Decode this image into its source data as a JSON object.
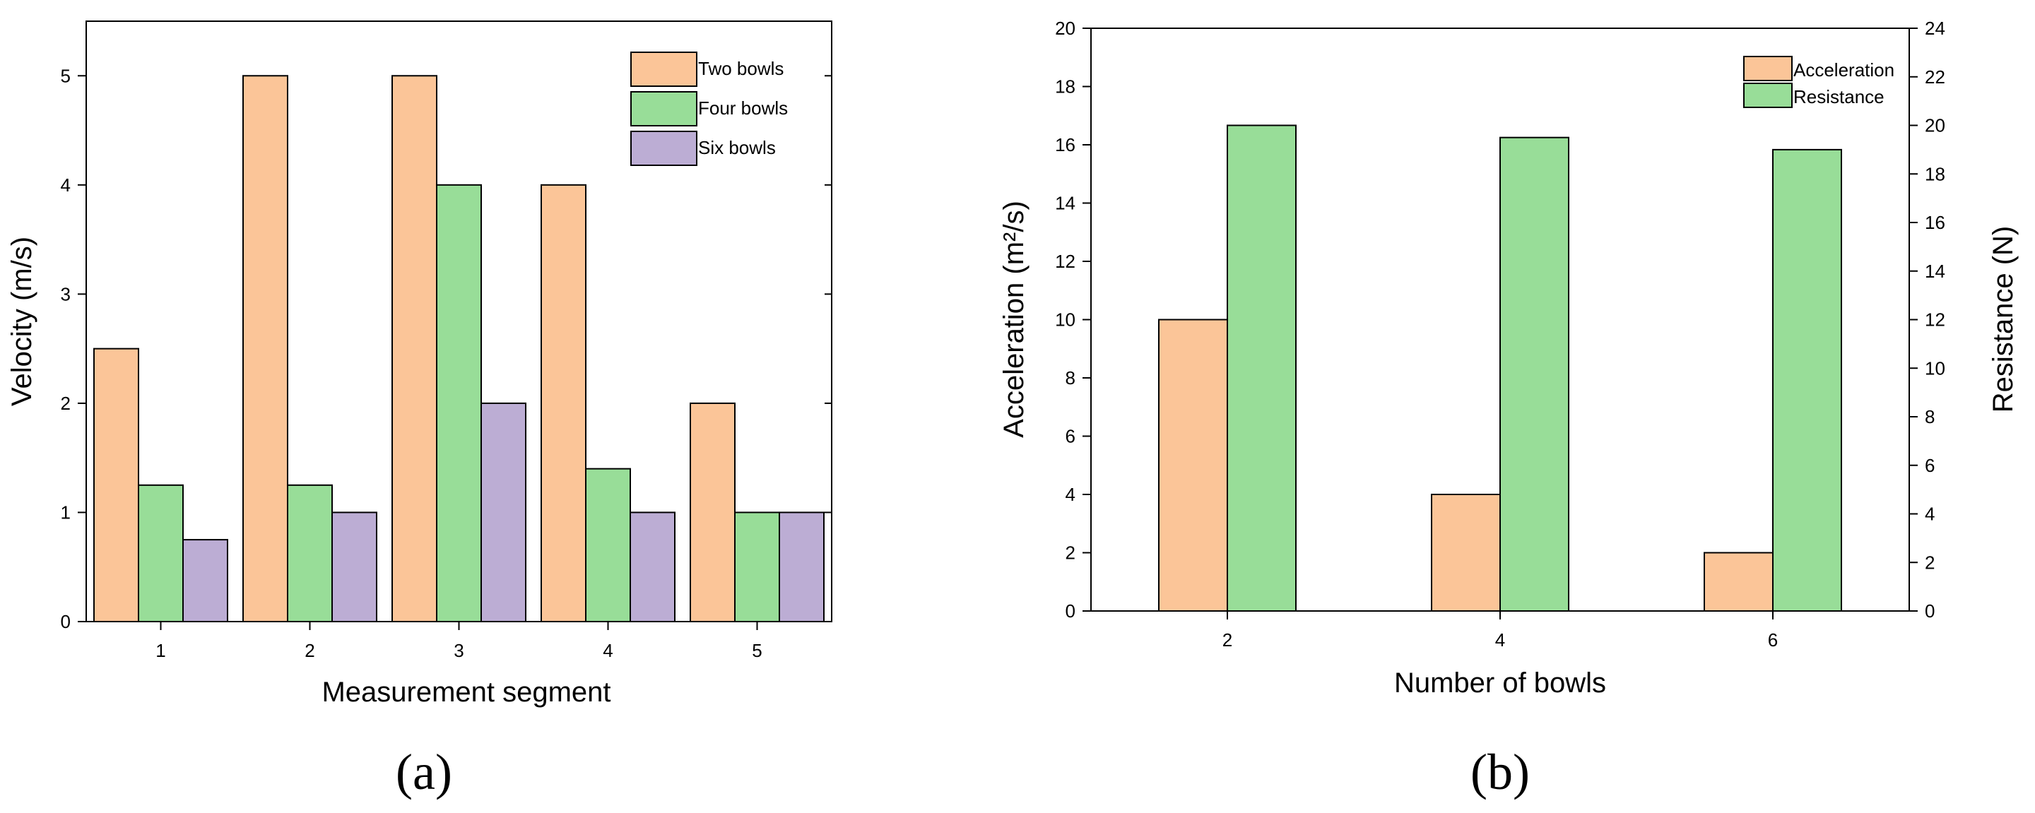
{
  "colors": {
    "orange": "#fbc598",
    "green": "#98dd98",
    "purple": "#bcadd4",
    "stroke": "#000000"
  },
  "chart_data": [
    {
      "type": "bar",
      "panel_label": "(a)",
      "categories": [
        "1",
        "2",
        "3",
        "4",
        "5"
      ],
      "series": [
        {
          "name": "Two bowls",
          "color": "#fbc598",
          "values": [
            2.5,
            5,
            5,
            4,
            2
          ]
        },
        {
          "name": "Four bowls",
          "color": "#98dd98",
          "values": [
            1.25,
            1.25,
            4,
            1.4,
            1
          ]
        },
        {
          "name": "Six bowls",
          "color": "#bcadd4",
          "values": [
            0.75,
            1,
            2,
            1,
            1
          ]
        }
      ],
      "xlabel": "Measurement segment",
      "ylabel": "Velocity (m/s)",
      "ylim": [
        0,
        5.5
      ],
      "yticks": [
        "0",
        "1",
        "2",
        "3",
        "4",
        "5"
      ],
      "legend_position": "top-right"
    },
    {
      "type": "bar",
      "panel_label": "(b)",
      "categories": [
        "2",
        "4",
        "6"
      ],
      "series": [
        {
          "name": "Acceleration",
          "color": "#fbc598",
          "axis": "left",
          "values": [
            10,
            4,
            2
          ]
        },
        {
          "name": "Resistance",
          "color": "#98dd98",
          "axis": "right",
          "values": [
            20,
            19.5,
            19
          ]
        }
      ],
      "xlabel": "Number of bowls",
      "ylabel": "Acceleration (m²/s)",
      "ylabel_right": "Resistance (N)",
      "ylim": [
        0,
        20
      ],
      "ylim_right": [
        0,
        24
      ],
      "yticks": [
        "0",
        "2",
        "4",
        "6",
        "8",
        "10",
        "12",
        "14",
        "16",
        "18",
        "20"
      ],
      "yticks_right": [
        "0",
        "2",
        "4",
        "6",
        "8",
        "10",
        "12",
        "14",
        "16",
        "18",
        "20",
        "22",
        "24"
      ],
      "legend_position": "top-right"
    }
  ]
}
